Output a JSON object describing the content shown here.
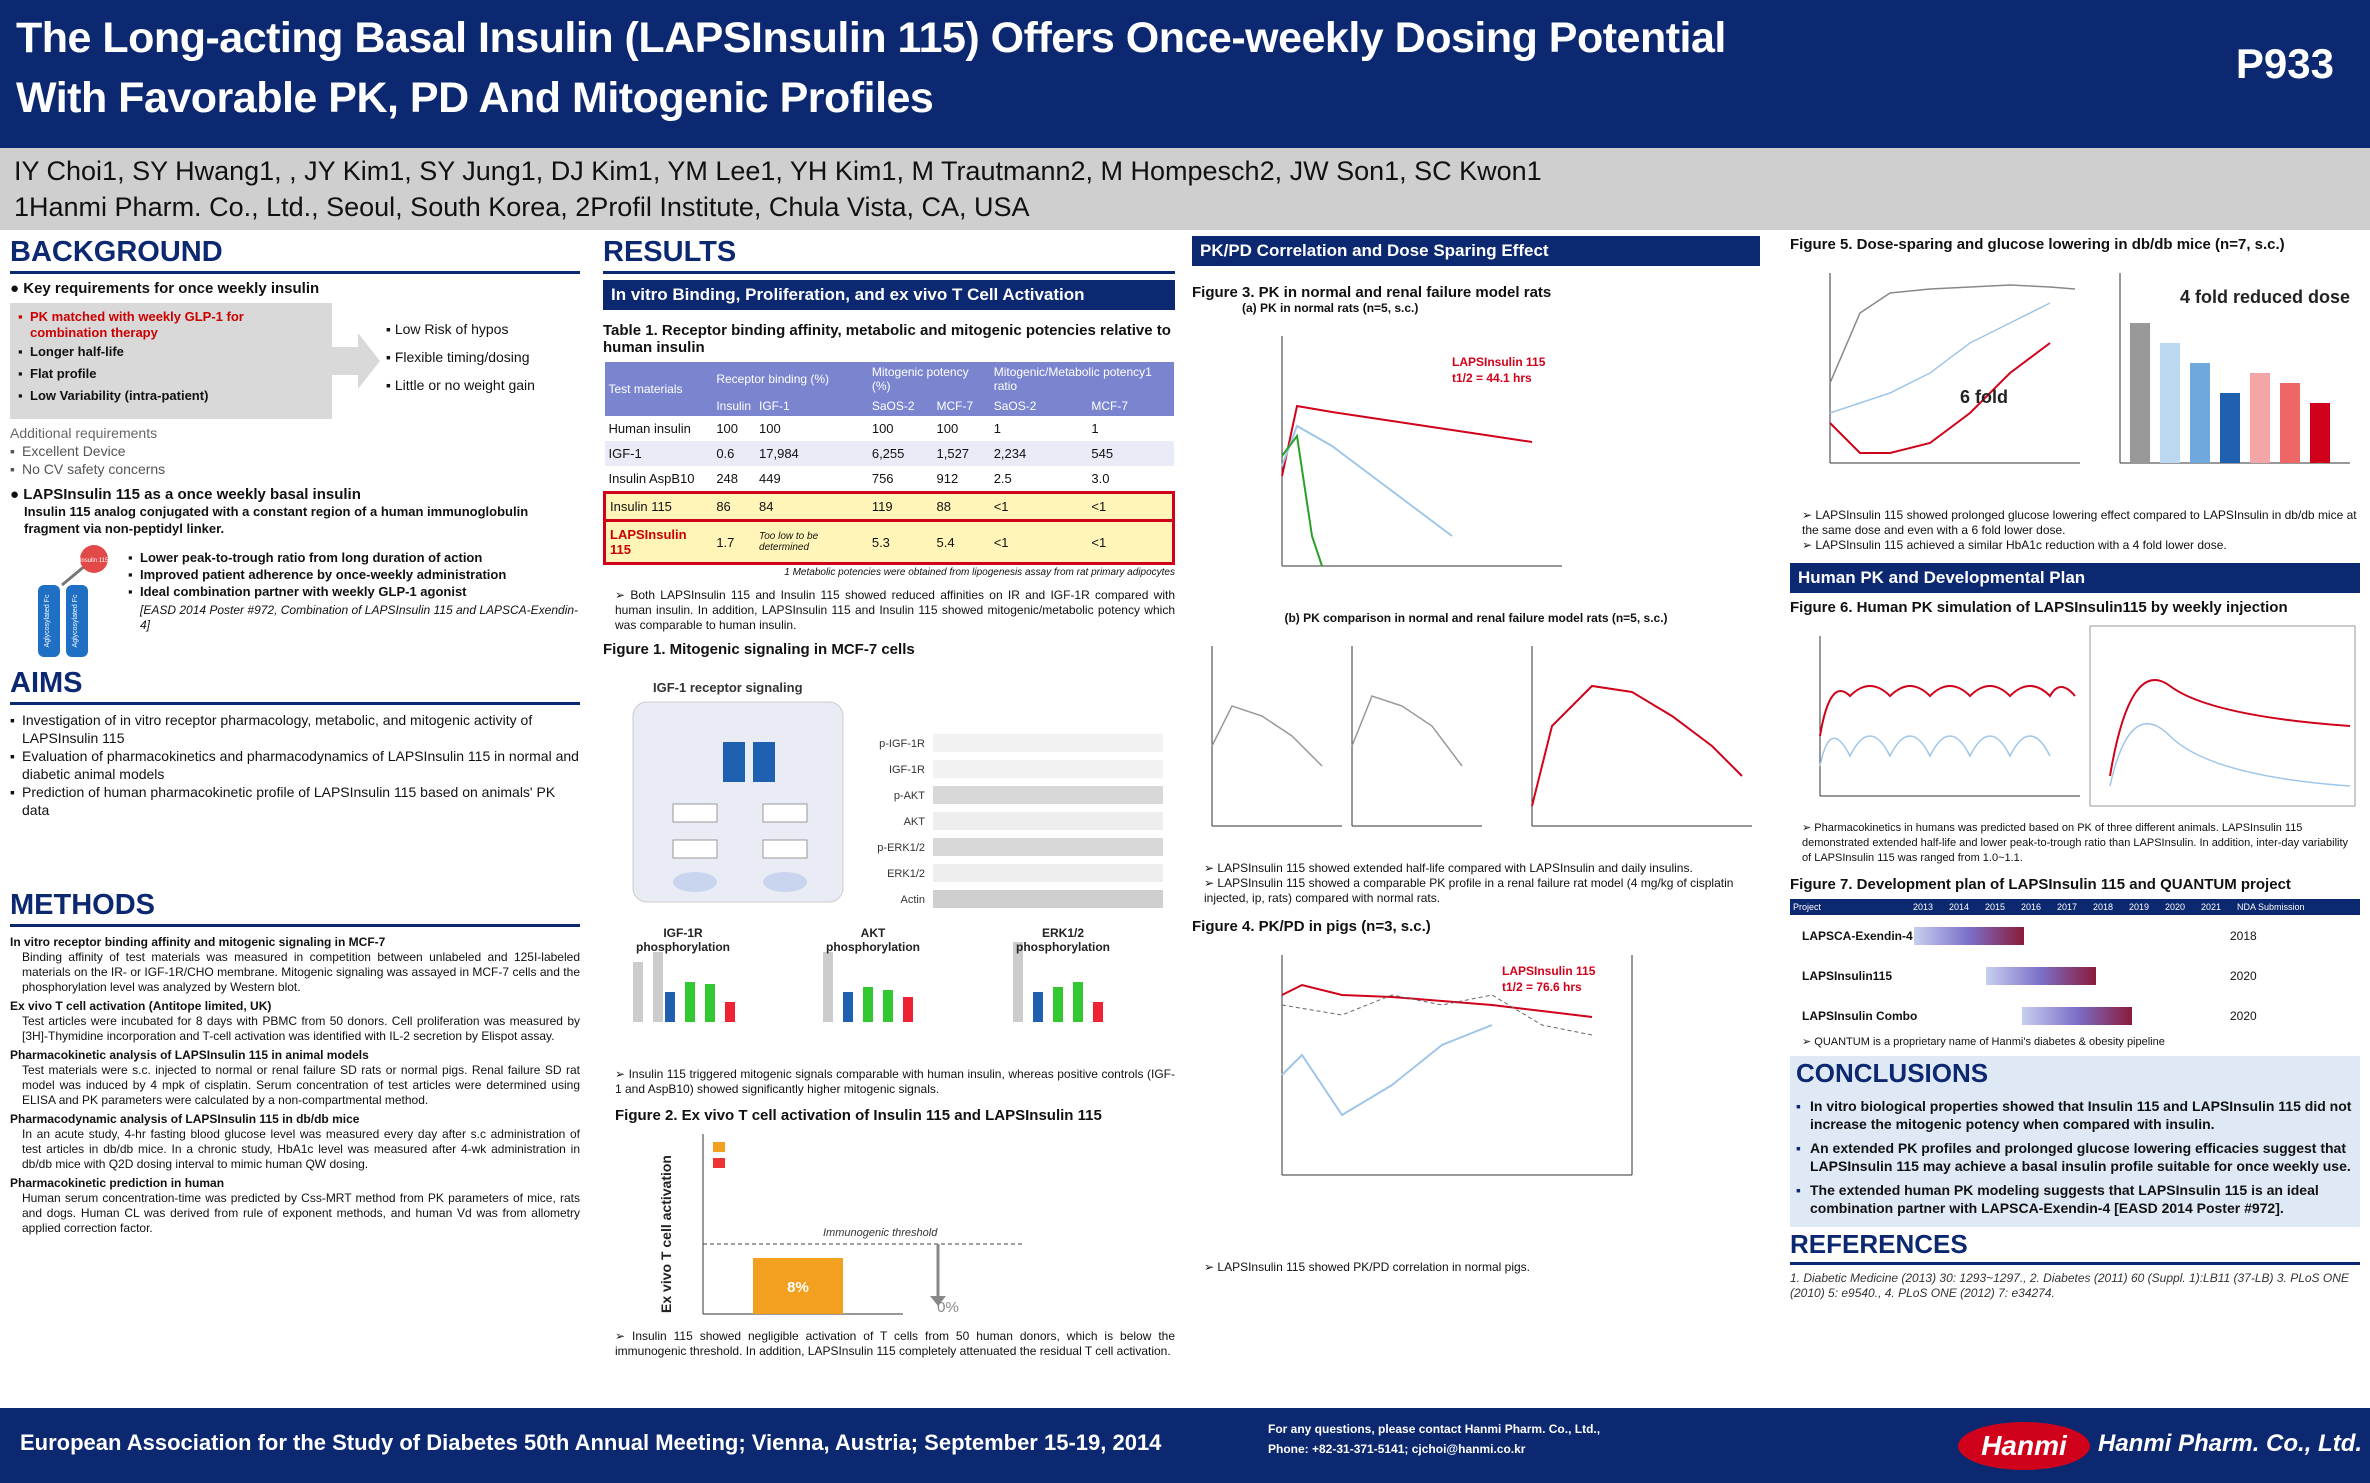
{
  "header": {
    "title_line1": "The Long-acting Basal Insulin (LAPSInsulin 115) Offers Once-weekly Dosing Potential",
    "title_line2": "With Favorable PK, PD And Mitogenic Profiles",
    "poster_id": "P933"
  },
  "authors": {
    "line1": "IY Choi1, SY Hwang1, , JY Kim1, SY Jung1, DJ Kim1, YM Lee1, YH Kim1, M Trautmann2, M Hompesch2, JW Son1, SC Kwon1",
    "line2": "1Hanmi Pharm. Co., Ltd., Seoul, South Korea, 2Profil Institute, Chula Vista, CA, USA"
  },
  "background": {
    "title": "BACKGROUND",
    "key_title": "Key requirements for once weekly insulin",
    "reqs": [
      "PK matched with weekly GLP-1 for combination therapy",
      "Longer half-life",
      "Flat profile",
      "Low Variability (intra-patient)"
    ],
    "benefits": [
      "Low Risk of hypos",
      "Flexible timing/dosing",
      "Little or no weight gain"
    ],
    "additional_title": "Additional requirements",
    "additional": [
      "Excellent Device",
      "No CV safety concerns"
    ],
    "laps_title": "LAPSInsulin 115 as a once weekly basal insulin",
    "laps_desc": "Insulin 115  analog conjugated with a constant region of a human immunoglobulin fragment via non-peptidyl linker.",
    "laps_points": [
      "Lower peak-to-trough ratio from long duration of action",
      "Improved patient adherence by once-weekly administration",
      "Ideal combination partner with weekly GLP-1 agonist"
    ],
    "laps_ref": "[EASD 2014 Poster #972, Combination of LAPSInsulin 115 and LAPSCA-Exendin-4]",
    "molecule_labels": [
      "Insulin 115",
      "Aglycosylated Fc",
      "Aglycosylated Fc"
    ]
  },
  "aims": {
    "title": "AIMS",
    "items": [
      "Investigation of in vitro receptor pharmacology, metabolic, and mitogenic activity of LAPSInsulin 115",
      "Evaluation of pharmacokinetics and pharmacodynamics of LAPSInsulin 115 in normal and diabetic animal models",
      "Prediction of human pharmacokinetic profile of LAPSInsulin 115 based on animals' PK data"
    ]
  },
  "methods": {
    "title": "METHODS",
    "items": [
      {
        "h": "In vitro receptor binding affinity and mitogenic signaling in MCF-7",
        "t": "Binding affinity of test materials was measured in competition between unlabeled and 125I-labeled materials on the IR- or IGF-1R/CHO membrane. Mitogenic signaling was assayed in MCF-7 cells and the phosphorylation level was analyzed by Western blot."
      },
      {
        "h": "Ex vivo T cell activation (Antitope limited, UK)",
        "t": "Test articles were incubated for 8 days with PBMC from 50 donors. Cell proliferation was measured by [3H]-Thymidine incorporation and T-cell activation was identified with IL-2 secretion by Elispot assay."
      },
      {
        "h": "Pharmacokinetic analysis of LAPSInsulin 115 in animal models",
        "t": "Test materials were s.c. injected to normal or renal failure SD rats or normal pigs. Renal failure SD rat model was induced by 4 mpk of cisplatin. Serum concentration of test articles were determined using ELISA and PK parameters were calculated by a non-compartmental method."
      },
      {
        "h": "Pharmacodynamic analysis of LAPSInsulin 115 in db/db mice",
        "t": "In an acute study, 4-hr fasting blood glucose level was measured every day after s.c administration of test articles in db/db mice. In a chronic study, HbA1c level was measured after 4-wk administration in db/db mice with Q2D dosing interval to mimic human QW dosing."
      },
      {
        "h": "Pharmacokinetic prediction  in human",
        "t": "Human serum concentration-time was predicted by Css-MRT method from PK parameters of mice, rats and dogs. Human CL was derived from rule of exponent methods, and human Vd was from allometry applied correction factor."
      }
    ]
  },
  "results": {
    "title": "RESULTS",
    "sub1": "In vitro Binding, Proliferation, and ex vivo T Cell Activation",
    "table_cap": "Table 1. Receptor binding affinity, metabolic and mitogenic potencies relative to human insulin",
    "table_heads": [
      "Test materials",
      "Receptor binding (%)",
      "Mitogenic potency (%)",
      "Mitogenic/Metabolic potency1 ratio"
    ],
    "table_sub": [
      "Insulin",
      "IGF-1",
      "SaOS-2",
      "MCF-7",
      "SaOS-2",
      "MCF-7"
    ],
    "rows": [
      [
        "Human insulin",
        "100",
        "100",
        "100",
        "100",
        "1",
        "1"
      ],
      [
        "IGF-1",
        "0.6",
        "17,984",
        "6,255",
        "1,527",
        "2,234",
        "545"
      ],
      [
        "Insulin AspB10",
        "248",
        "449",
        "756",
        "912",
        "2.5",
        "3.0"
      ],
      [
        "Insulin 115",
        "86",
        "84",
        "119",
        "88",
        "<1",
        "<1"
      ],
      [
        "LAPSInsulin 115",
        "1.7",
        "Too low to be determined",
        "5.3",
        "5.4",
        "<1",
        "<1"
      ]
    ],
    "table_note": "1 Metabolic potencies were obtained from lipogenesis assay from rat primary adipocytes",
    "table_text": "Both LAPSInsulin 115 and Insulin 115 showed reduced affinities on IR and IGF-1R compared with human insulin. In addition, LAPSInsulin 115 and Insulin 115 showed mitogenic/metabolic potency which was comparable to human insulin.",
    "fig1_cap": "Figure 1. Mitogenic signaling in MCF-7 cells",
    "fig1_text": "Insulin 115 triggered mitogenic signals comparable with human insulin, whereas positive controls (IGF-1 and AspB10) showed significantly higher mitogenic signals.",
    "fig2_cap": "Figure 2. Ex vivo T cell activation of Insulin 115 and LAPSInsulin 115",
    "fig2_text": "Insulin 115 showed negligible activation  of T cells from 50 human donors, which is below the immunogenic threshold. In addition, LAPSInsulin 115 completely attenuated the residual T cell activation."
  },
  "pkpd": {
    "sub": "PK/PD Correlation and Dose Sparing Effect",
    "fig3_cap": "Figure 3. PK in normal and renal failure model rats",
    "fig3a": "(a) PK in normal rats (n=5, s.c.)",
    "fig3b": "(b) PK comparison in normal and renal failure model rats (n=5, s.c.)",
    "fig3_text1": "LAPSInsulin 115 showed extended half-life compared with LAPSInsulin and daily insulins.",
    "fig3_text2": "LAPSInsulin 115 showed a comparable PK profile in a renal failure rat model (4 mg/kg of cisplatin injected, ip, rats) compared with normal rats.",
    "fig4_cap": "Figure 4. PK/PD in pigs (n=3, s.c.)",
    "fig4_text": "LAPSInsulin 115 showed PK/PD correlation in normal pigs."
  },
  "right": {
    "fig5_cap": "Figure 5. Dose-sparing and glucose lowering in db/db mice (n=7, s.c.)",
    "fig5_text1": "LAPSInsulin 115 showed prolonged glucose lowering effect compared to LAPSInsulin in db/db mice at the same dose and even with a 6 fold lower dose.",
    "fig5_text2": "LAPSInsulin 115 achieved a similar HbA1c reduction with a 4 fold lower dose.",
    "human_sub": "Human PK and Developmental Plan",
    "fig6_cap": "Figure 6. Human PK simulation of LAPSInsulin115 by weekly injection",
    "fig6_text": "Pharmacokinetics in humans was predicted based on PK of three different animals. LAPSInsulin 115 demonstrated extended half-life and lower peak-to-trough ratio than LAPSInsulin. In addition, inter-day variability of LAPSInsulin 115 was ranged from 1.0~1.1.",
    "fig7_cap": "Figure 7. Development plan of LAPSInsulin 115 and QUANTUM project",
    "fig7_years": [
      "Project",
      "2013",
      "2014",
      "2015",
      "2016",
      "2017",
      "2018",
      "2019",
      "2020",
      "2021",
      "NDA Submission"
    ],
    "fig7_rows": [
      {
        "name": "LAPSCA-Exendin-4",
        "year": "2018"
      },
      {
        "name": "LAPSInsulin115",
        "year": "2020"
      },
      {
        "name": "LAPSInsulin Combo",
        "year": "2020"
      }
    ],
    "fig7_note": "QUANTUM is a proprietary name of Hanmi's diabetes & obesity pipeline",
    "conc_title": "CONCLUSIONS",
    "conc": [
      "In vitro biological properties showed that Insulin 115 and LAPSInsulin 115 did not increase the mitogenic potency when compared with insulin.",
      "An extended PK profiles and prolonged glucose lowering efficacies suggest that LAPSInsulin 115 may achieve a basal insulin profile suitable for once weekly use.",
      "The extended human PK modeling suggests that LAPSInsulin 115 is an ideal combination partner with LAPSCA-Exendin-4 [EASD 2014 Poster #972]."
    ],
    "ref_title": "REFERENCES",
    "refs": "1. Diabetic Medicine (2013) 30: 1293~1297., 2. Diabetes (2011) 60 (Suppl. 1):LB11 (37-LB) 3. PLoS ONE (2010) 5: e9540., 4. PLoS ONE (2012) 7: e34274."
  },
  "footer": {
    "meeting": "European Association for the Study of Diabetes 50th Annual Meeting; Vienna, Austria; September 15-19, 2014",
    "contact1": "For any questions, please contact Hanmi Pharm. Co., Ltd.,",
    "contact2": "Phone: +82-31-371-5141; cjchoi@hanmi.co.kr",
    "logo": "Hanmi",
    "company": "Hanmi Pharm. Co., Ltd."
  },
  "colors": {
    "navy": "#0c2870",
    "red": "#d0021b",
    "purple": "#7b85cf"
  }
}
